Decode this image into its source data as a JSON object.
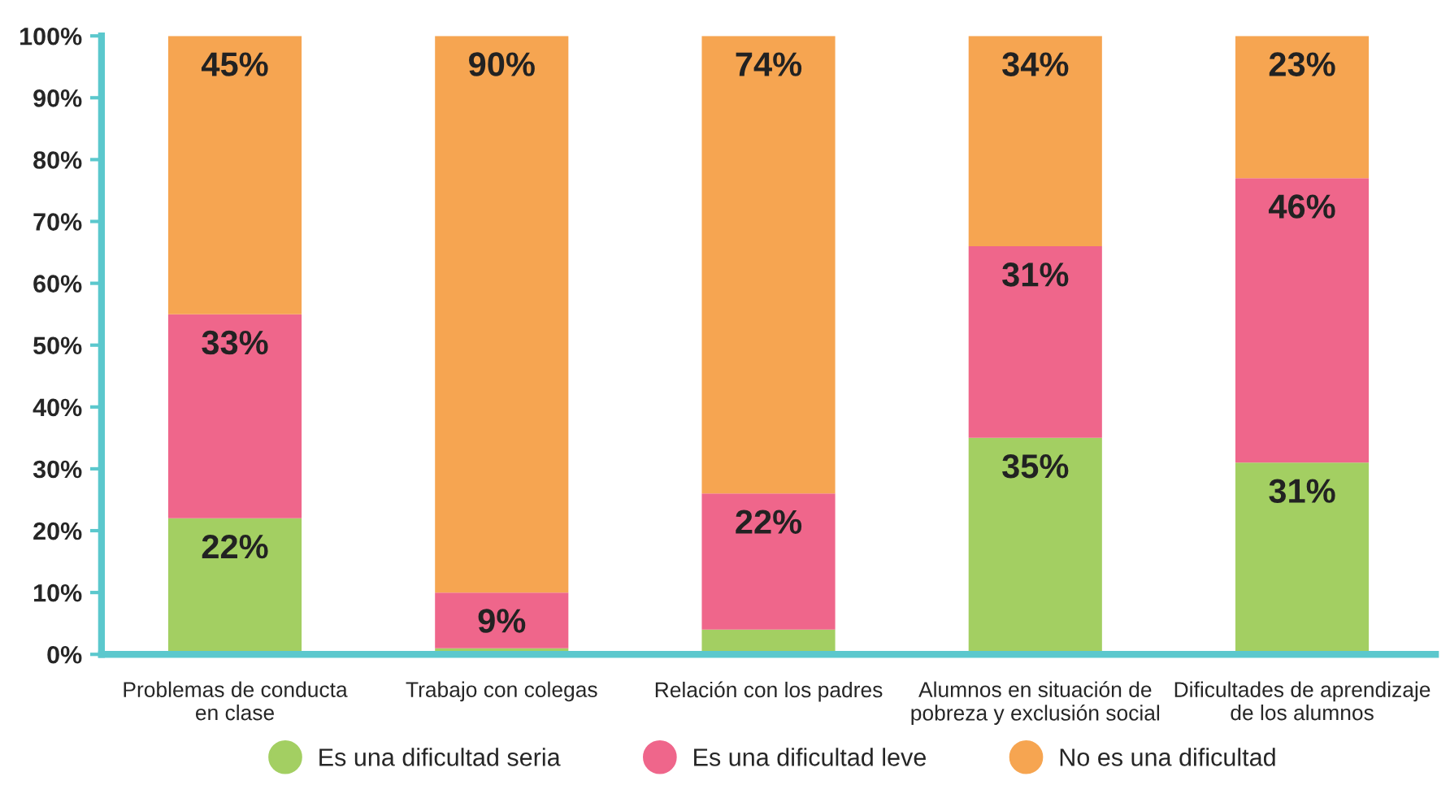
{
  "chart_data": {
    "type": "bar",
    "stacked": true,
    "categories": [
      "Problemas de conducta\nen clase",
      "Trabajo con colegas",
      "Relación con los padres",
      "Alumnos en situación de\npobreza y exclusión social",
      "Dificultades de aprendizaje\nde los alumnos"
    ],
    "series": [
      {
        "name": "Es una dificultad seria",
        "color": "#a3cf62",
        "values": [
          22,
          1,
          4,
          35,
          31
        ],
        "value_labels": [
          "22%",
          null,
          null,
          "35%",
          "31%"
        ]
      },
      {
        "name": "Es una dificultad leve",
        "color": "#ef668b",
        "values": [
          33,
          9,
          22,
          31,
          46
        ],
        "value_labels": [
          "33%",
          "9%",
          "22%",
          "31%",
          "46%"
        ]
      },
      {
        "name": "No es una dificultad",
        "color": "#f6a551",
        "values": [
          45,
          90,
          74,
          34,
          23
        ],
        "value_labels": [
          "45%",
          "90%",
          "74%",
          "34%",
          "23%"
        ]
      }
    ],
    "ylim": [
      0,
      100
    ],
    "yticks": [
      {
        "value": 0,
        "label": "0%"
      },
      {
        "value": 10,
        "label": "10%"
      },
      {
        "value": 20,
        "label": "20%"
      },
      {
        "value": 30,
        "label": "30%"
      },
      {
        "value": 40,
        "label": "40%"
      },
      {
        "value": 50,
        "label": "50%"
      },
      {
        "value": 60,
        "label": "60%"
      },
      {
        "value": 70,
        "label": "70%"
      },
      {
        "value": 80,
        "label": "80%"
      },
      {
        "value": 90,
        "label": "90%"
      },
      {
        "value": 100,
        "label": "100%"
      }
    ],
    "grid": false,
    "legend": "bottom"
  }
}
